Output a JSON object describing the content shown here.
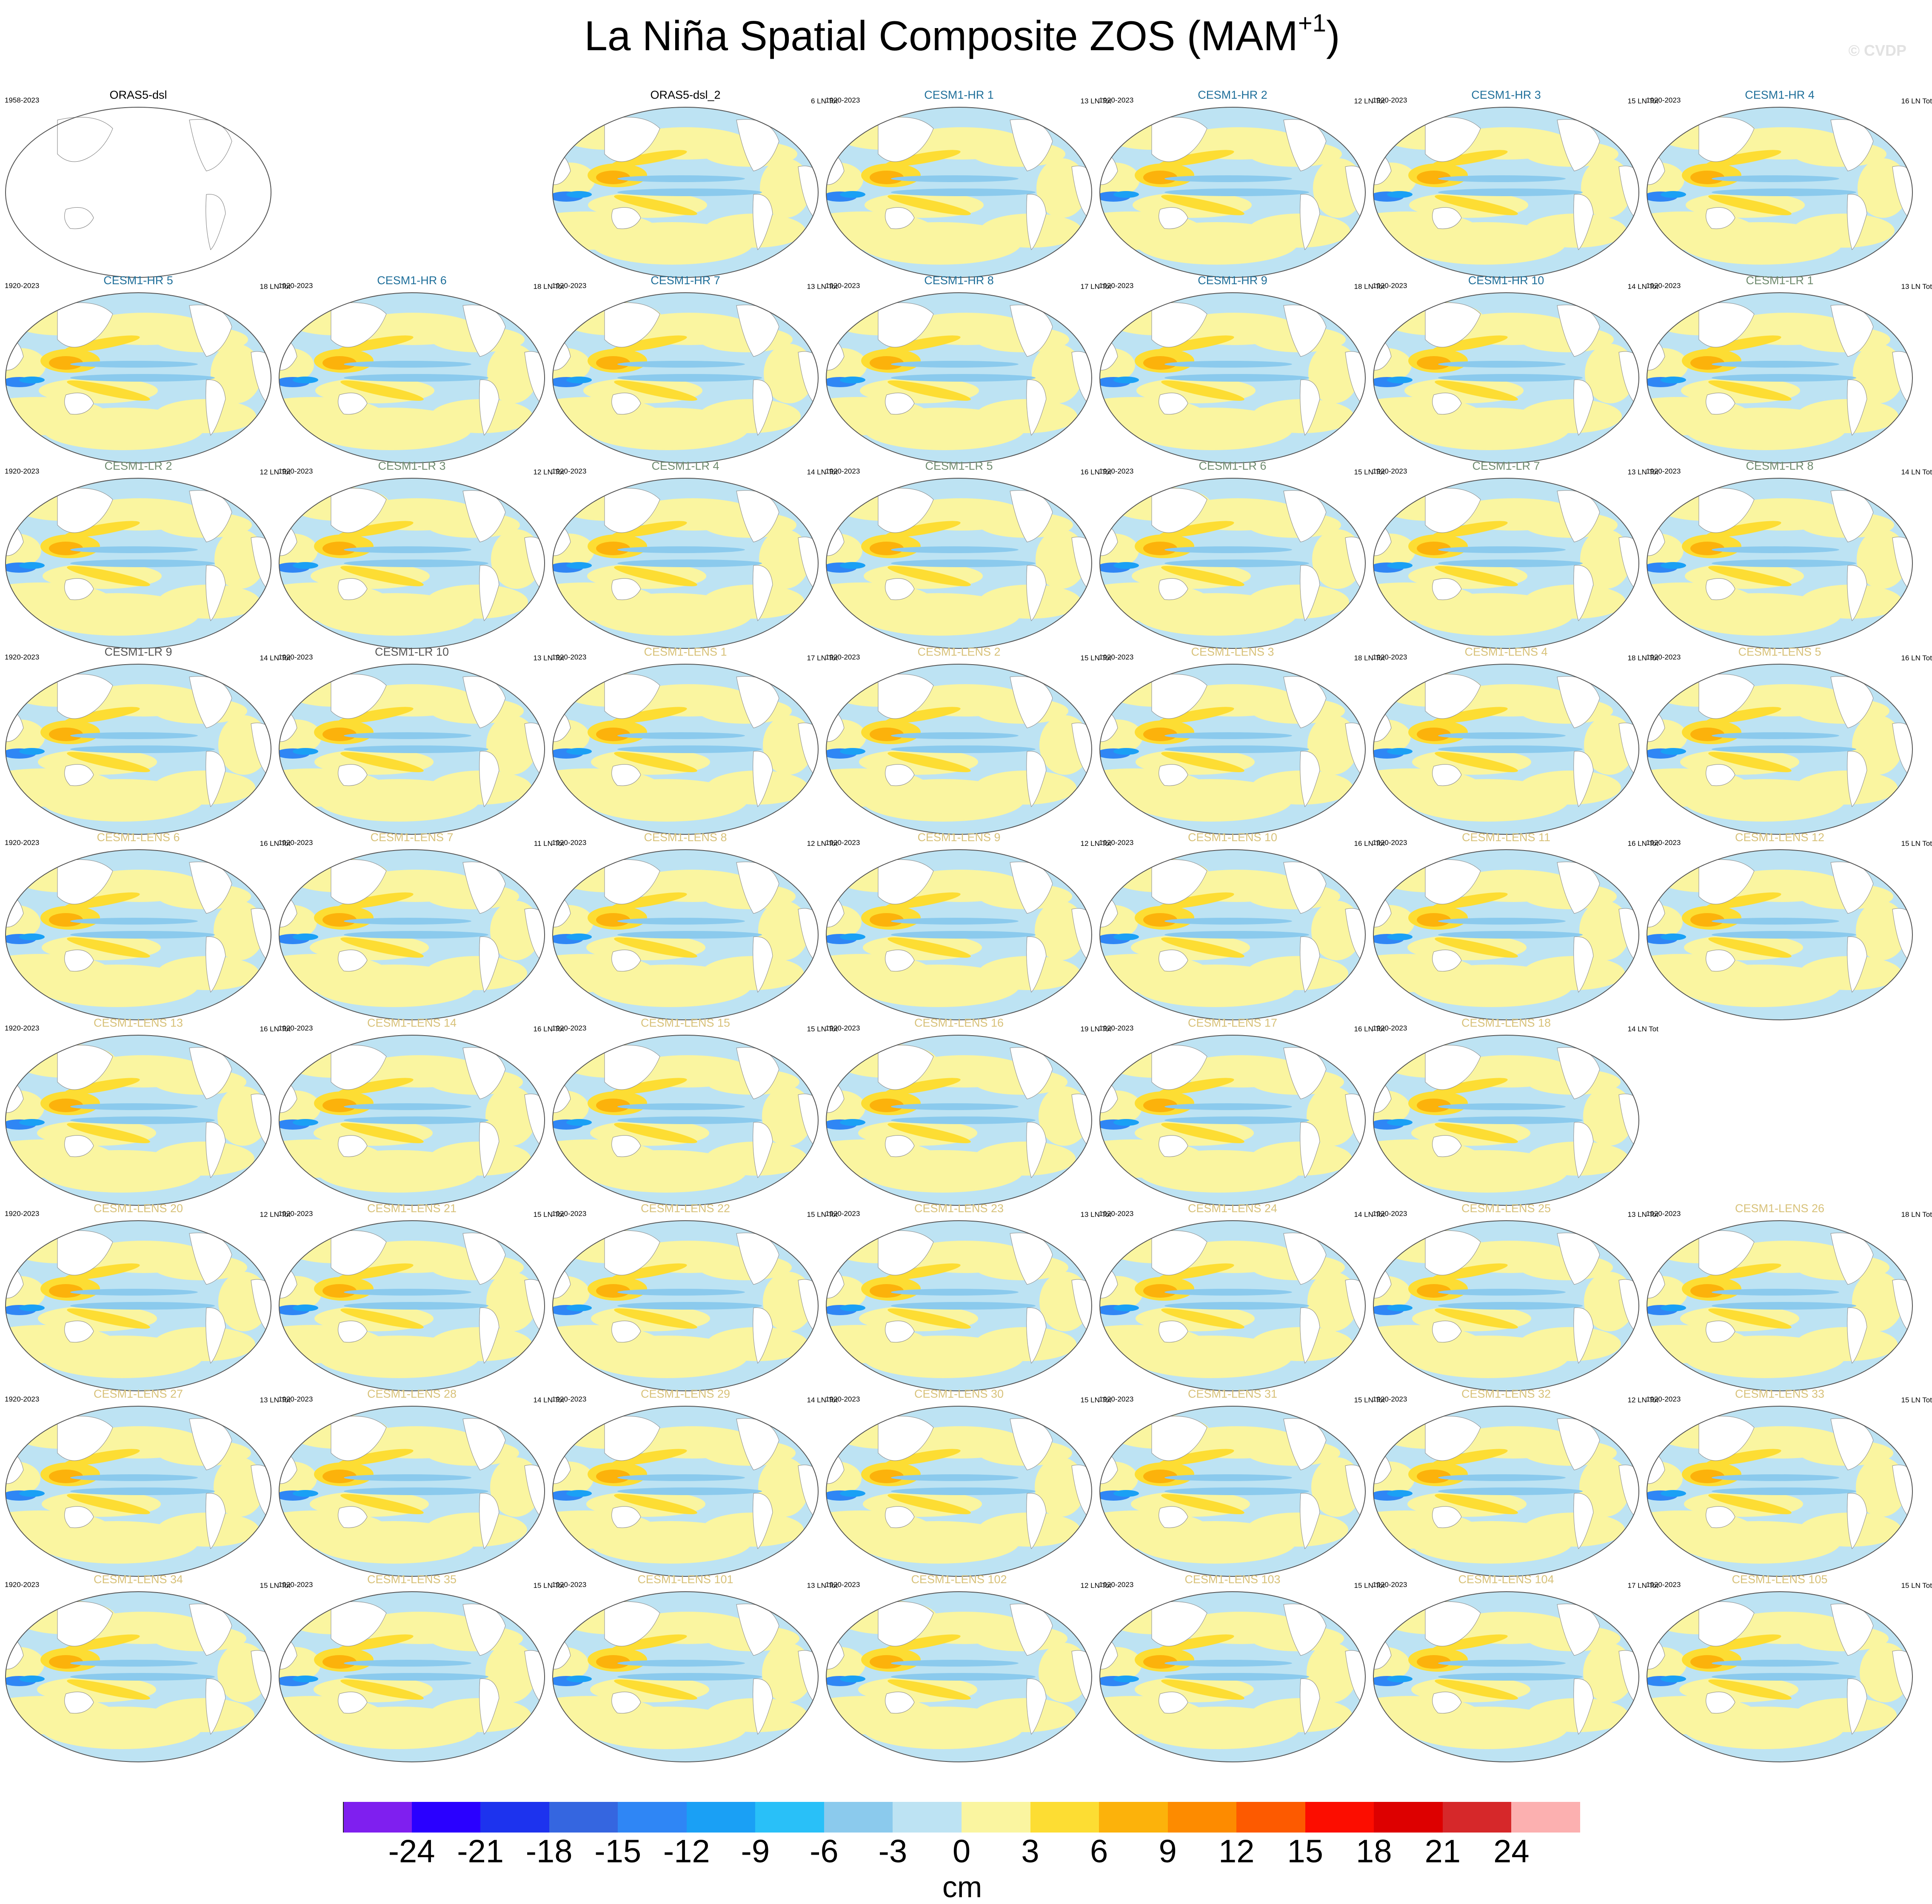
{
  "figure": {
    "title": "La Niña Spatial Composite ZOS (MAM",
    "title_superscript": "+1",
    "title_suffix": ")",
    "watermark": "© CVDP"
  },
  "panels": [
    {
      "title": "ORAS5-dsl",
      "period": "1958-2023",
      "count": "",
      "color": "#000000",
      "empty": true
    },
    {
      "title": "ORAS5-dsl_2",
      "period": "",
      "count": "6 LN Tot",
      "color": "#000000",
      "empty": false
    },
    {
      "title": "CESM1-HR 1",
      "period": "1920-2023",
      "count": "13 LN Tot",
      "color": "#1f6f9a",
      "empty": false
    },
    {
      "title": "CESM1-HR 2",
      "period": "1920-2023",
      "count": "12 LN Tot",
      "color": "#1f6f9a",
      "empty": false
    },
    {
      "title": "CESM1-HR 3",
      "period": "1920-2023",
      "count": "15 LN Tot",
      "color": "#1f6f9a",
      "empty": false
    },
    {
      "title": "CESM1-HR 4",
      "period": "1920-2023",
      "count": "16 LN Tot",
      "color": "#1f6f9a",
      "empty": false
    },
    {
      "title": "CESM1-HR 5",
      "period": "1920-2023",
      "count": "18 LN Tot",
      "color": "#1f6f9a",
      "empty": false
    },
    {
      "title": "CESM1-HR 6",
      "period": "1920-2023",
      "count": "18 LN Tot",
      "color": "#1f6f9a",
      "empty": false
    },
    {
      "title": "CESM1-HR 7",
      "period": "1920-2023",
      "count": "13 LN Tot",
      "color": "#1f6f9a",
      "empty": false
    },
    {
      "title": "CESM1-HR 8",
      "period": "1920-2023",
      "count": "17 LN Tot",
      "color": "#1f6f9a",
      "empty": false
    },
    {
      "title": "CESM1-HR 9",
      "period": "1920-2023",
      "count": "18 LN Tot",
      "color": "#1f6f9a",
      "empty": false
    },
    {
      "title": "CESM1-HR 10",
      "period": "1920-2023",
      "count": "14 LN Tot",
      "color": "#1f6f9a",
      "empty": false
    },
    {
      "title": "CESM1-LR 1",
      "period": "1920-2023",
      "count": "13 LN Tot",
      "color": "#6f8b6f",
      "empty": false
    },
    {
      "title": "CESM1-LR 2",
      "period": "1920-2023",
      "count": "12 LN Tot",
      "color": "#6f8b6f",
      "empty": false
    },
    {
      "title": "CESM1-LR 3",
      "period": "1920-2023",
      "count": "12 LN Tot",
      "color": "#6f8b6f",
      "empty": false
    },
    {
      "title": "CESM1-LR 4",
      "period": "1920-2023",
      "count": "14 LN Tot",
      "color": "#6f8b6f",
      "empty": false
    },
    {
      "title": "CESM1-LR 5",
      "period": "1920-2023",
      "count": "16 LN Tot",
      "color": "#6f8b6f",
      "empty": false
    },
    {
      "title": "CESM1-LR 6",
      "period": "1920-2023",
      "count": "15 LN Tot",
      "color": "#6f8b6f",
      "empty": false
    },
    {
      "title": "CESM1-LR 7",
      "period": "1920-2023",
      "count": "13 LN Tot",
      "color": "#6f8b6f",
      "empty": false
    },
    {
      "title": "CESM1-LR 8",
      "period": "1920-2023",
      "count": "14 LN Tot",
      "color": "#6f8b6f",
      "empty": false
    },
    {
      "title": "CESM1-LR 9",
      "period": "1920-2023",
      "count": "14 LN Tot",
      "color": "#555555",
      "empty": false
    },
    {
      "title": "CESM1-LR 10",
      "period": "1920-2023",
      "count": "13 LN Tot",
      "color": "#555555",
      "empty": false
    },
    {
      "title": "CESM1-LENS 1",
      "period": "1920-2023",
      "count": "17 LN Tot",
      "color": "#d8c27a",
      "empty": false
    },
    {
      "title": "CESM1-LENS 2",
      "period": "1920-2023",
      "count": "15 LN Tot",
      "color": "#d8c27a",
      "empty": false
    },
    {
      "title": "CESM1-LENS 3",
      "period": "1920-2023",
      "count": "18 LN Tot",
      "color": "#d8c27a",
      "empty": false
    },
    {
      "title": "CESM1-LENS 4",
      "period": "1920-2023",
      "count": "18 LN Tot",
      "color": "#d8c27a",
      "empty": false
    },
    {
      "title": "CESM1-LENS 5",
      "period": "1920-2023",
      "count": "16 LN Tot",
      "color": "#d8c27a",
      "empty": false
    },
    {
      "title": "CESM1-LENS 6",
      "period": "1920-2023",
      "count": "16 LN Tot",
      "color": "#d8c27a",
      "empty": false
    },
    {
      "title": "CESM1-LENS 7",
      "period": "1920-2023",
      "count": "11 LN Tot",
      "color": "#d8c27a",
      "empty": false
    },
    {
      "title": "CESM1-LENS 8",
      "period": "1920-2023",
      "count": "12 LN Tot",
      "color": "#d8c27a",
      "empty": false
    },
    {
      "title": "CESM1-LENS 9",
      "period": "1920-2023",
      "count": "12 LN Tot",
      "color": "#d8c27a",
      "empty": false
    },
    {
      "title": "CESM1-LENS 10",
      "period": "1920-2023",
      "count": "16 LN Tot",
      "color": "#d8c27a",
      "empty": false
    },
    {
      "title": "CESM1-LENS 11",
      "period": "1920-2023",
      "count": "16 LN Tot",
      "color": "#d8c27a",
      "empty": false
    },
    {
      "title": "CESM1-LENS 12",
      "period": "1920-2023",
      "count": "15 LN Tot",
      "color": "#d8c27a",
      "empty": false
    },
    {
      "title": "CESM1-LENS 13",
      "period": "1920-2023",
      "count": "16 LN Tot",
      "color": "#d8c27a",
      "empty": false
    },
    {
      "title": "CESM1-LENS 14",
      "period": "1920-2023",
      "count": "16 LN Tot",
      "color": "#d8c27a",
      "empty": false
    },
    {
      "title": "CESM1-LENS 15",
      "period": "1920-2023",
      "count": "15 LN Tot",
      "color": "#d8c27a",
      "empty": false
    },
    {
      "title": "CESM1-LENS 16",
      "period": "1920-2023",
      "count": "19 LN Tot",
      "color": "#d8c27a",
      "empty": false
    },
    {
      "title": "CESM1-LENS 17",
      "period": "1920-2023",
      "count": "16 LN Tot",
      "color": "#d8c27a",
      "empty": false
    },
    {
      "title": "CESM1-LENS 18",
      "period": "1920-2023",
      "count": "14 LN Tot",
      "color": "#d8c27a",
      "empty": false
    },
    {
      "title": "CESM1-LENS 20",
      "period": "1920-2023",
      "count": "12 LN Tot",
      "color": "#d8c27a",
      "empty": false
    },
    {
      "title": "CESM1-LENS 21",
      "period": "1920-2023",
      "count": "15 LN Tot",
      "color": "#d8c27a",
      "empty": false
    },
    {
      "title": "CESM1-LENS 22",
      "period": "1920-2023",
      "count": "15 LN Tot",
      "color": "#d8c27a",
      "empty": false
    },
    {
      "title": "CESM1-LENS 23",
      "period": "1920-2023",
      "count": "13 LN Tot",
      "color": "#d8c27a",
      "empty": false
    },
    {
      "title": "CESM1-LENS 24",
      "period": "1920-2023",
      "count": "14 LN Tot",
      "color": "#d8c27a",
      "empty": false
    },
    {
      "title": "CESM1-LENS 25",
      "period": "1920-2023",
      "count": "13 LN Tot",
      "color": "#d8c27a",
      "empty": false
    },
    {
      "title": "CESM1-LENS 26",
      "period": "1920-2023",
      "count": "18 LN Tot",
      "color": "#d8c27a",
      "empty": false
    },
    {
      "title": "CESM1-LENS 27",
      "period": "1920-2023",
      "count": "13 LN Tot",
      "color": "#d8c27a",
      "empty": false
    },
    {
      "title": "CESM1-LENS 28",
      "period": "1920-2023",
      "count": "14 LN Tot",
      "color": "#d8c27a",
      "empty": false
    },
    {
      "title": "CESM1-LENS 29",
      "period": "1920-2023",
      "count": "14 LN Tot",
      "color": "#d8c27a",
      "empty": false
    },
    {
      "title": "CESM1-LENS 30",
      "period": "1920-2023",
      "count": "15 LN Tot",
      "color": "#d8c27a",
      "empty": false
    },
    {
      "title": "CESM1-LENS 31",
      "period": "1920-2023",
      "count": "15 LN Tot",
      "color": "#d8c27a",
      "empty": false
    },
    {
      "title": "CESM1-LENS 32",
      "period": "1920-2023",
      "count": "12 LN Tot",
      "color": "#d8c27a",
      "empty": false
    },
    {
      "title": "CESM1-LENS 33",
      "period": "1920-2023",
      "count": "15 LN Tot",
      "color": "#d8c27a",
      "empty": false
    },
    {
      "title": "CESM1-LENS 34",
      "period": "1920-2023",
      "count": "15 LN Tot",
      "color": "#d8c27a",
      "empty": false
    },
    {
      "title": "CESM1-LENS 35",
      "period": "1920-2023",
      "count": "15 LN Tot",
      "color": "#d8c27a",
      "empty": false
    },
    {
      "title": "CESM1-LENS 101",
      "period": "1920-2023",
      "count": "13 LN Tot",
      "color": "#d8c27a",
      "empty": false
    },
    {
      "title": "CESM1-LENS 102",
      "period": "1920-2023",
      "count": "12 LN Tot",
      "color": "#d8c27a",
      "empty": false
    },
    {
      "title": "CESM1-LENS 103",
      "period": "1920-2023",
      "count": "15 LN Tot",
      "color": "#d8c27a",
      "empty": false
    },
    {
      "title": "CESM1-LENS 104",
      "period": "1920-2023",
      "count": "17 LN Tot",
      "color": "#d8c27a",
      "empty": false
    },
    {
      "title": "CESM1-LENS 105",
      "period": "1920-2023",
      "count": "15 LN Tot",
      "color": "#d8c27a",
      "empty": false
    }
  ],
  "colorbar": {
    "units": "cm",
    "tick_labels": [
      "-24",
      "-21",
      "-18",
      "-15",
      "-12",
      "-9",
      "-6",
      "-3",
      "0",
      "3",
      "6",
      "9",
      "12",
      "15",
      "18",
      "21",
      "24"
    ],
    "colors": [
      "#7f1fef",
      "#2a00ff",
      "#1d33ee",
      "#3566e0",
      "#2f86f5",
      "#1aa0f5",
      "#29c0f8",
      "#8bcaed",
      "#bde3f3",
      "#faf5a0",
      "#fddd33",
      "#fcb20b",
      "#fd8b00",
      "#fd5a00",
      "#fc0d00",
      "#dd0000",
      "#d6282a",
      "#fcb0b0"
    ]
  }
}
